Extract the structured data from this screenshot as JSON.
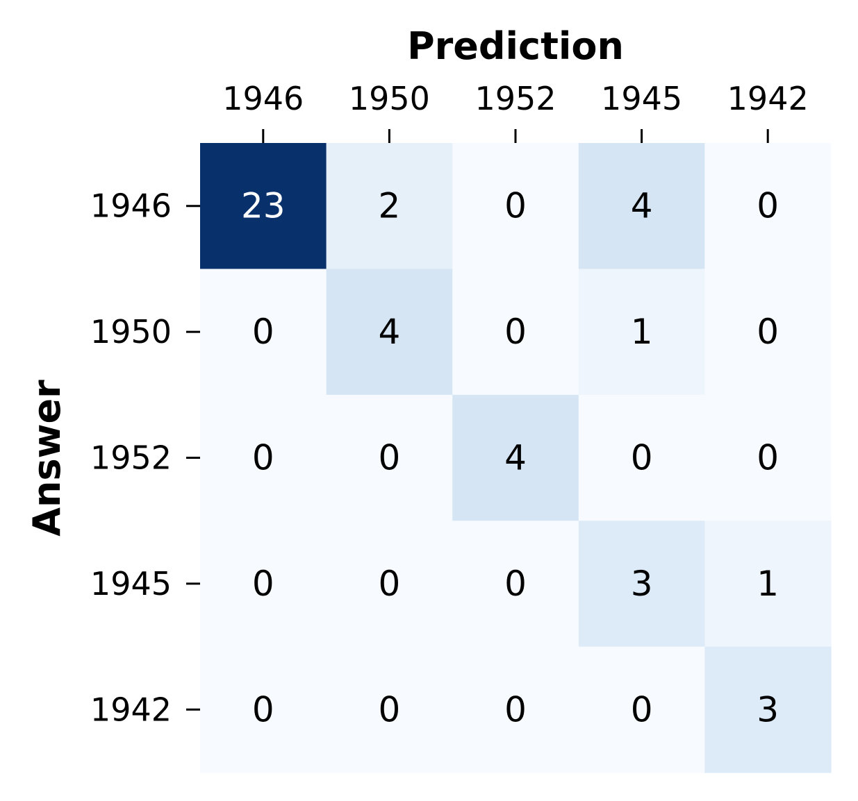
{
  "chart_data": {
    "type": "heatmap",
    "title": "",
    "xlabel": "Prediction",
    "ylabel": "Answer",
    "x_categories": [
      "1946",
      "1950",
      "1952",
      "1945",
      "1942"
    ],
    "y_categories": [
      "1946",
      "1950",
      "1952",
      "1945",
      "1942"
    ],
    "values": [
      [
        23,
        2,
        0,
        4,
        0
      ],
      [
        0,
        4,
        0,
        1,
        0
      ],
      [
        0,
        0,
        4,
        0,
        0
      ],
      [
        0,
        0,
        0,
        3,
        1
      ],
      [
        0,
        0,
        0,
        0,
        3
      ]
    ],
    "colormap": "Blues",
    "vmin": 0,
    "vmax": 23,
    "colorbar": false,
    "grid": false,
    "x_axis_position": "top",
    "colors": {
      "low": "#f7fbff",
      "high": "#08306b",
      "text_dark": "#000000",
      "text_light": "#ffffff"
    }
  }
}
